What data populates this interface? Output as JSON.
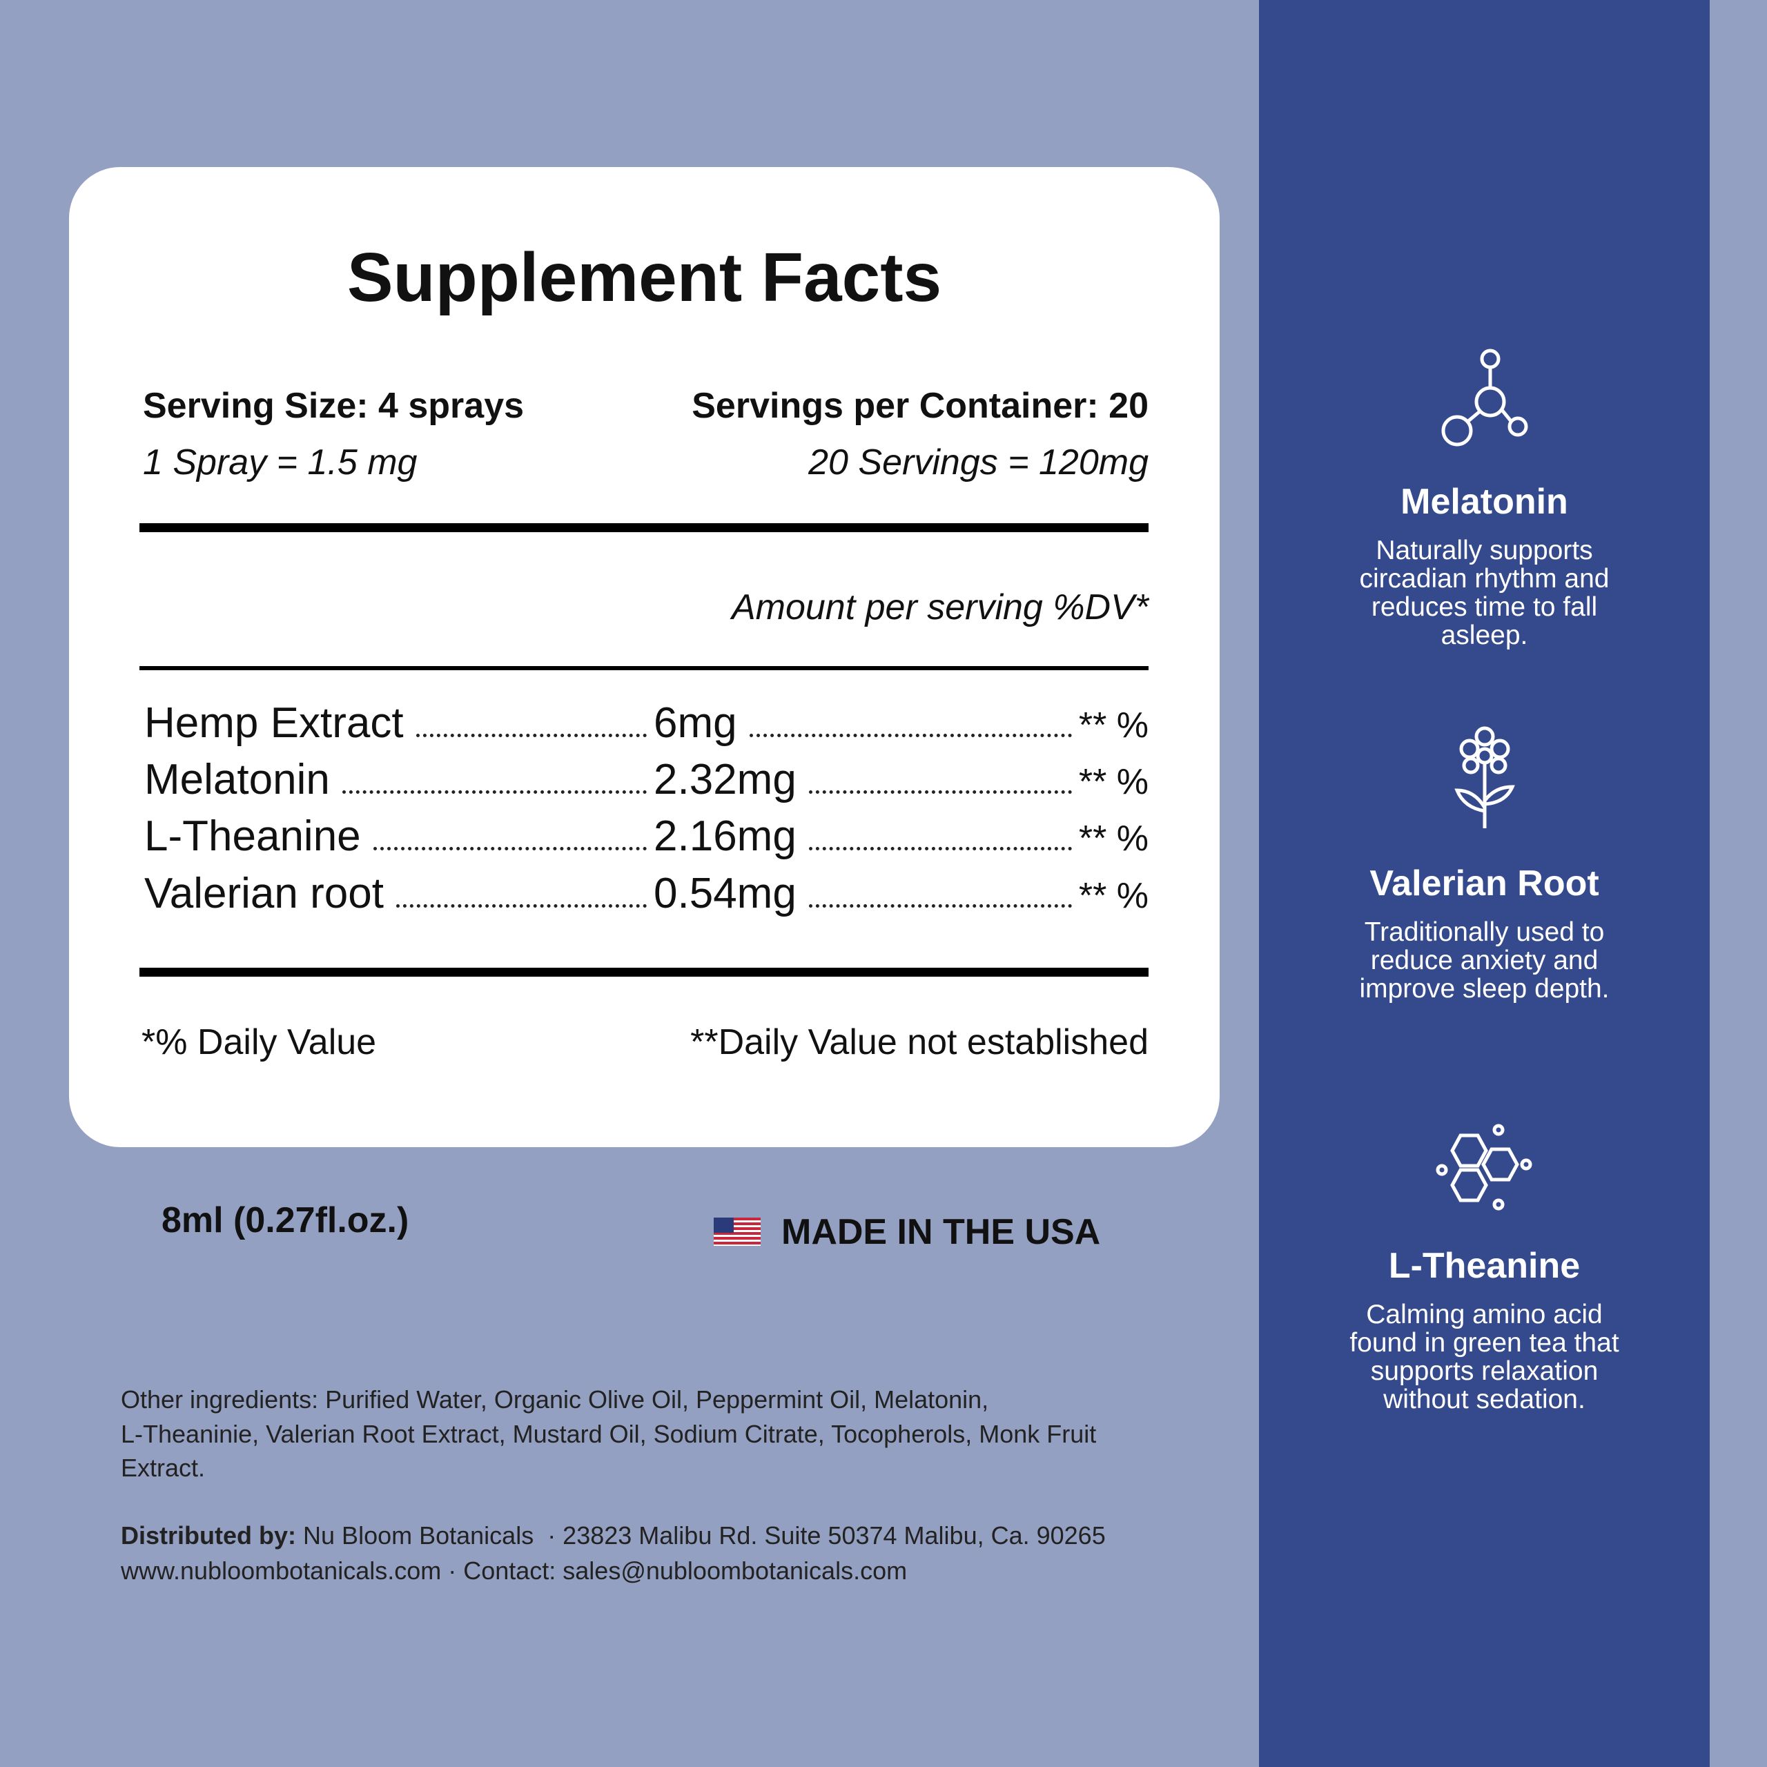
{
  "header": {
    "title": "Supplement Facts"
  },
  "serving": {
    "size": "Serving Size: 4 sprays",
    "per_container": "Servings per Container: 20",
    "spray": "1 Spray = 1.5 mg",
    "total": "20 Servings = 120mg"
  },
  "amount_header": "Amount per serving %DV*",
  "table": {
    "rows": [
      {
        "name": "Hemp Extract",
        "amount": "6mg",
        "dv": "** %"
      },
      {
        "name": "Melatonin",
        "amount": "2.32mg",
        "dv": "** %"
      },
      {
        "name": "L-Theanine",
        "amount": "2.16mg",
        "dv": "** %"
      },
      {
        "name": "Valerian root",
        "amount": "0.54mg",
        "dv": "** %"
      }
    ]
  },
  "footnotes": {
    "left": "*% Daily Value",
    "right": "**Daily Value not established"
  },
  "volume": "8ml (0.27fl.oz.)",
  "origin": "MADE IN THE USA",
  "other_ingredients": [
    "Other ingredients: Purified Water, Organic Olive Oil, Peppermint Oil, Melatonin,",
    "L-Theaninie, Valerian Root Extract, Mustard Oil, Sodium Citrate, Tocopherols, Monk Fruit",
    "Extract."
  ],
  "distributor": {
    "label": "Distributed by:",
    "lines": [
      "Nu Bloom Botanicals  · 23823 Malibu Rd. Suite 50374 Malibu, Ca. 90265",
      "www.nubloombotanicals.com · Contact: sales@nubloombotanicals.com"
    ]
  },
  "panel": {
    "items": [
      {
        "heading": "Melatonin",
        "lines": [
          "Naturally supports",
          "circadian rhythm and",
          "reduces time to fall",
          "asleep."
        ]
      },
      {
        "heading": "Valerian Root",
        "lines": [
          "Traditionally used to",
          "reduce anxiety and",
          "improve sleep depth."
        ]
      },
      {
        "heading": "L-Theanine",
        "lines": [
          "Calming amino acid",
          "found in green tea that",
          "supports relaxation",
          "without sedation."
        ]
      }
    ]
  }
}
